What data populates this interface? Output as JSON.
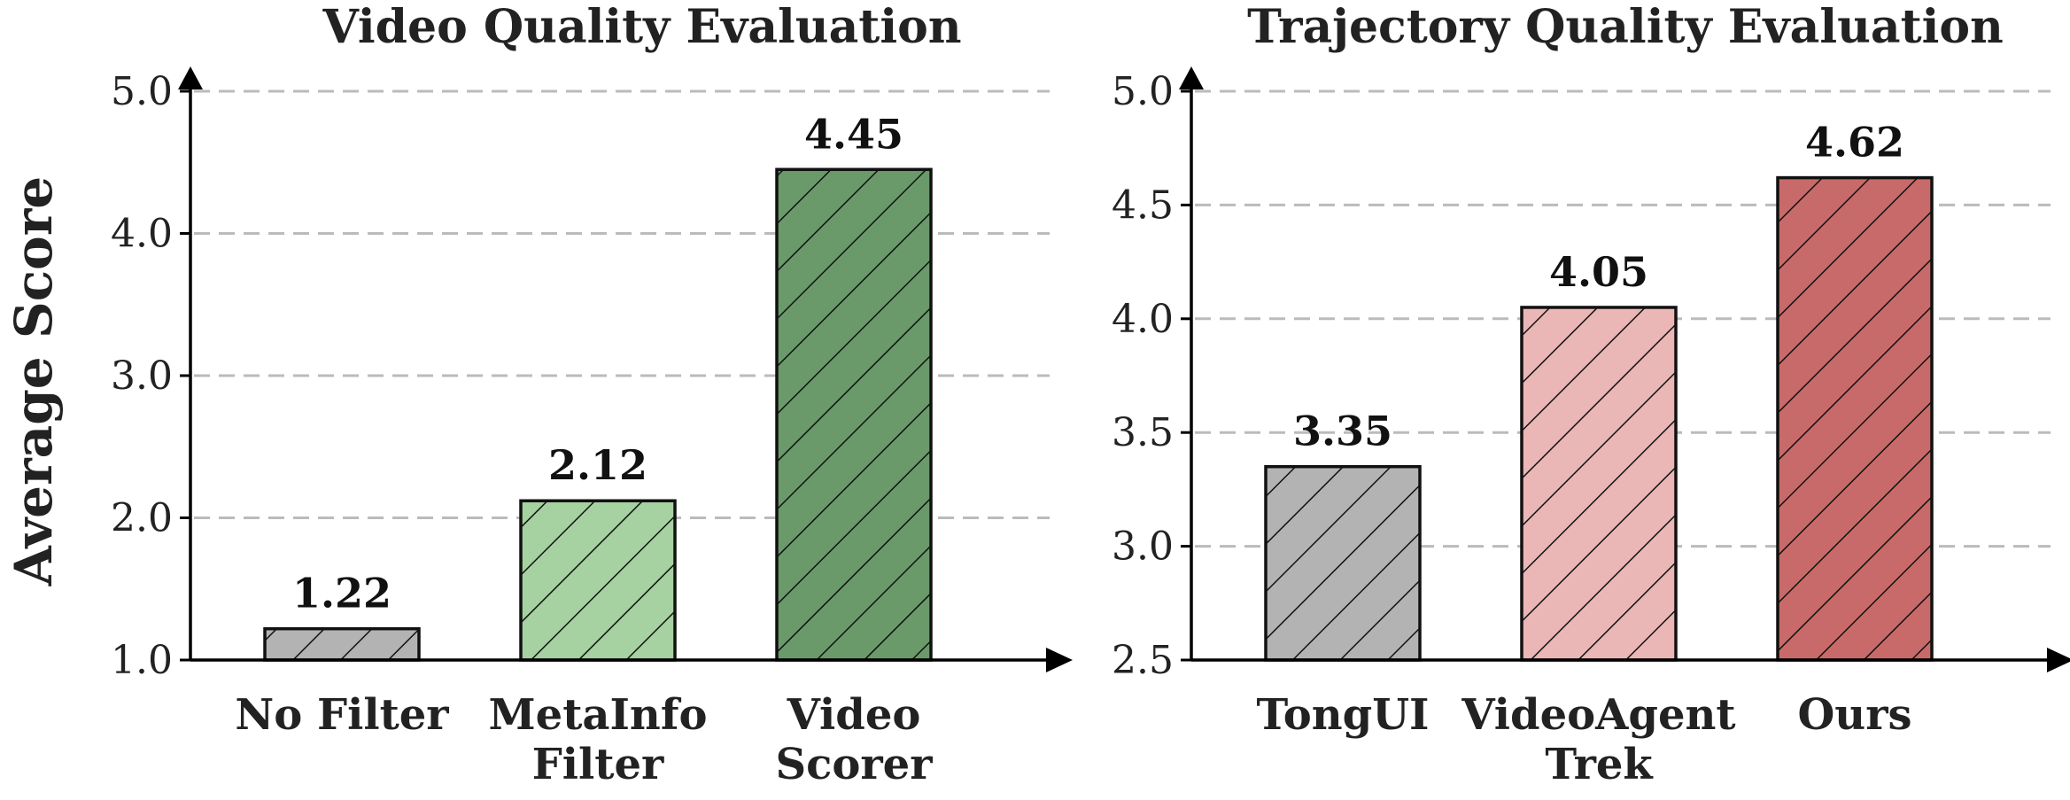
{
  "figure": {
    "ylabel": "Average Score"
  },
  "colors": {
    "gray": "#b3b3b3",
    "light_green": "#a6d1a0",
    "dark_green": "#6a9a6a",
    "light_pink": "#ebb6b6",
    "dark_red": "#c96a6a"
  },
  "chart_data": [
    {
      "type": "bar",
      "title": "Video Quality Evaluation",
      "ylabel": "Average Score",
      "xlabel": "",
      "ylim": [
        1.0,
        5.0
      ],
      "yticks": [
        1.0,
        2.0,
        3.0,
        4.0,
        5.0
      ],
      "ytick_labels": [
        "1.0",
        "2.0",
        "3.0",
        "4.0",
        "5.0"
      ],
      "grid": "y, dashed",
      "categories": [
        [
          "No Filter"
        ],
        [
          "MetaInfo",
          "Filter"
        ],
        [
          "Video",
          "Scorer"
        ]
      ],
      "values": [
        1.22,
        2.12,
        4.45
      ],
      "value_labels": [
        "1.22",
        "2.12",
        "4.45"
      ],
      "bar_colors": [
        "#b3b3b3",
        "#a6d1a0",
        "#6a9a6a"
      ],
      "hatch": "diagonal"
    },
    {
      "type": "bar",
      "title": "Trajectory Quality Evaluation",
      "ylabel": "",
      "xlabel": "",
      "ylim": [
        2.5,
        5.0
      ],
      "yticks": [
        2.5,
        3.0,
        3.5,
        4.0,
        4.5,
        5.0
      ],
      "ytick_labels": [
        "2.5",
        "3.0",
        "3.5",
        "4.0",
        "4.5",
        "5.0"
      ],
      "grid": "y, dashed",
      "categories": [
        [
          "TongUI"
        ],
        [
          "VideoAgent",
          "Trek"
        ],
        [
          "Ours"
        ]
      ],
      "values": [
        3.35,
        4.05,
        4.62
      ],
      "value_labels": [
        "3.35",
        "4.05",
        "4.62"
      ],
      "bar_colors": [
        "#b3b3b3",
        "#ebb6b6",
        "#c96a6a"
      ],
      "hatch": "diagonal"
    }
  ]
}
